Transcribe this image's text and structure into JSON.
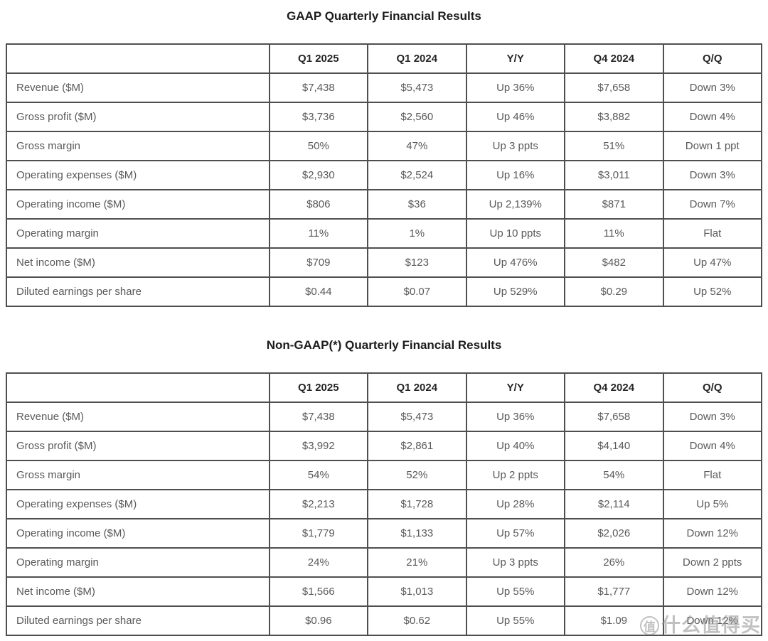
{
  "tables": [
    {
      "title": "GAAP Quarterly Financial Results",
      "columns": [
        "",
        "Q1 2025",
        "Q1 2024",
        "Y/Y",
        "Q4 2024",
        "Q/Q"
      ],
      "rows": [
        [
          "Revenue ($M)",
          "$7,438",
          "$5,473",
          "Up 36%",
          "$7,658",
          "Down 3%"
        ],
        [
          "Gross profit ($M)",
          "$3,736",
          "$2,560",
          "Up 46%",
          "$3,882",
          "Down 4%"
        ],
        [
          "Gross margin",
          "50%",
          "47%",
          "Up 3 ppts",
          "51%",
          "Down 1 ppt"
        ],
        [
          "Operating expenses ($M)",
          "$2,930",
          "$2,524",
          "Up 16%",
          "$3,011",
          "Down 3%"
        ],
        [
          "Operating income ($M)",
          "$806",
          "$36",
          "Up 2,139%",
          "$871",
          "Down 7%"
        ],
        [
          "Operating margin",
          "11%",
          "1%",
          "Up 10 ppts",
          "11%",
          "Flat"
        ],
        [
          "Net income ($M)",
          "$709",
          "$123",
          "Up 476%",
          "$482",
          "Up 47%"
        ],
        [
          "Diluted earnings per share",
          "$0.44",
          "$0.07",
          "Up 529%",
          "$0.29",
          "Up 52%"
        ]
      ]
    },
    {
      "title": "Non-GAAP(*) Quarterly Financial Results",
      "columns": [
        "",
        "Q1 2025",
        "Q1 2024",
        "Y/Y",
        "Q4 2024",
        "Q/Q"
      ],
      "rows": [
        [
          "Revenue ($M)",
          "$7,438",
          "$5,473",
          "Up 36%",
          "$7,658",
          "Down 3%"
        ],
        [
          "Gross profit ($M)",
          "$3,992",
          "$2,861",
          "Up 40%",
          "$4,140",
          "Down 4%"
        ],
        [
          "Gross margin",
          "54%",
          "52%",
          "Up 2 ppts",
          "54%",
          "Flat"
        ],
        [
          "Operating expenses ($M)",
          "$2,213",
          "$1,728",
          "Up 28%",
          "$2,114",
          "Up 5%"
        ],
        [
          "Operating income ($M)",
          "$1,779",
          "$1,133",
          "Up 57%",
          "$2,026",
          "Down 12%"
        ],
        [
          "Operating margin",
          "24%",
          "21%",
          "Up 3 ppts",
          "26%",
          "Down 2 ppts"
        ],
        [
          "Net income ($M)",
          "$1,566",
          "$1,013",
          "Up 55%",
          "$1,777",
          "Down 12%"
        ],
        [
          "Diluted earnings per share",
          "$0.96",
          "$0.62",
          "Up 55%",
          "$1.09",
          "Down 12%"
        ]
      ]
    }
  ],
  "watermark": {
    "icon_char": "值",
    "text": "什么值得买"
  },
  "colors": {
    "table_border": "#4f4f4f",
    "header_text": "#262626",
    "body_text": "#595959",
    "title_text": "#1c1c1c",
    "watermark_gray": "#8f8f8f"
  }
}
